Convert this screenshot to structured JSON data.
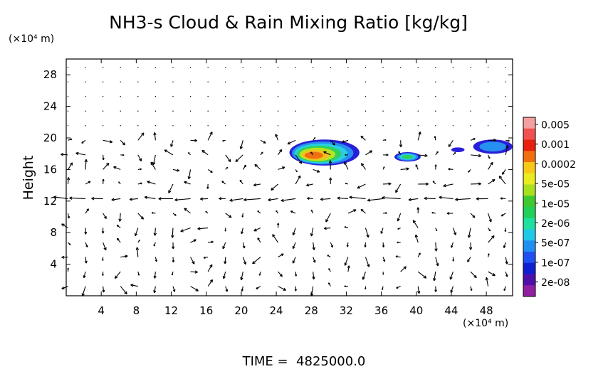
{
  "chart_data": {
    "type": "heatmap",
    "title": "NH3-s Cloud & Rain Mixing Ratio [kg/kg]",
    "ylabel": "Height",
    "y_unit_label": "(×10⁴ m)",
    "x_unit_label": "(×10⁴ m)",
    "footer": "TIME =  4825000.0",
    "xlim": [
      0,
      51
    ],
    "ylim": [
      0,
      30
    ],
    "x_ticks": [
      "4",
      "8",
      "12",
      "16",
      "20",
      "24",
      "28",
      "32",
      "36",
      "40",
      "44",
      "48"
    ],
    "y_ticks": [
      "4",
      "8",
      "12",
      "16",
      "20",
      "24",
      "28"
    ],
    "grid": false,
    "colorbar": {
      "labels": [
        "0.005",
        "0.001",
        "0.0002",
        "5e-05",
        "1e-05",
        "2e-06",
        "5e-07",
        "1e-07",
        "2e-08"
      ],
      "colors": [
        "#f5a0a0",
        "#f05050",
        "#e82010",
        "#f07010",
        "#f8c818",
        "#e8ec20",
        "#a8e020",
        "#40c830",
        "#20d058",
        "#20e0a0",
        "#20c8e8",
        "#2090f0",
        "#2050f0",
        "#1020d0",
        "#5010a8",
        "#9020a0"
      ]
    },
    "cloud_regions": [
      {
        "x": [
          25.5,
          33.5
        ],
        "y": [
          16.5,
          19.8
        ],
        "peak": "0.0002"
      },
      {
        "x": [
          37.5,
          40.5
        ],
        "y": [
          17.0,
          18.2
        ],
        "peak": "1e-05"
      },
      {
        "x": [
          44.0,
          45.5
        ],
        "y": [
          18.2,
          18.8
        ],
        "peak": "2e-08"
      },
      {
        "x": [
          46.5,
          51.0
        ],
        "y": [
          18.0,
          19.8
        ],
        "peak": "5e-07"
      }
    ],
    "wind_field": "arrows"
  }
}
